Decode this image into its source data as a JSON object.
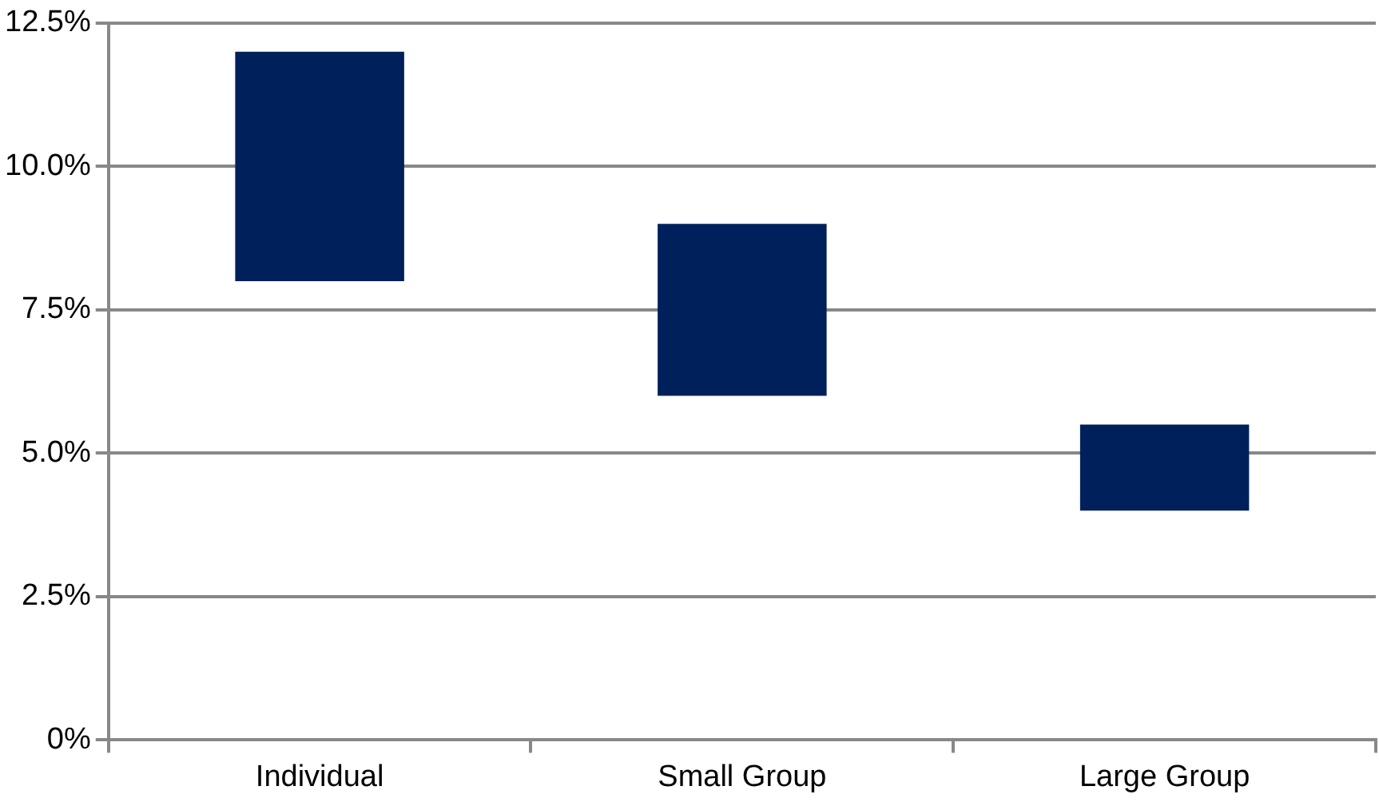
{
  "chart_data": {
    "type": "bar",
    "categories": [
      "Individual",
      "Small Group",
      "Large Group"
    ],
    "values": [
      4,
      3,
      1.5
    ],
    "base": [
      8,
      6,
      4
    ],
    "color": "#00205b",
    "ylim": [
      0,
      12.5
    ],
    "yticks": [
      {
        "value": 0,
        "label": "0%"
      },
      {
        "value": 2.5,
        "label": "2.5%"
      },
      {
        "value": 5,
        "label": "5.0%"
      },
      {
        "value": 7.5,
        "label": "7.5%"
      },
      {
        "value": 10,
        "label": "10.0%"
      },
      {
        "value": 12.5,
        "label": "12.5%"
      }
    ],
    "grid": "y"
  }
}
